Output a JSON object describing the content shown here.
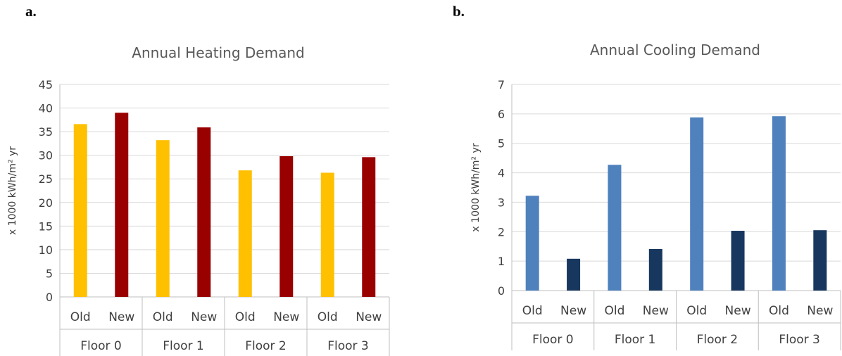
{
  "panels": {
    "a": "a.",
    "b": "b."
  },
  "chart_data": [
    {
      "type": "bar",
      "title": "Annual Heating Demand",
      "ylabel": "x 1000 kWh/m² yr",
      "xlabel": "",
      "ylim": [
        0,
        45
      ],
      "yticks": [
        0,
        5,
        10,
        15,
        20,
        25,
        30,
        35,
        40,
        45
      ],
      "groups": [
        "Floor 0",
        "Floor 1",
        "Floor 2",
        "Floor 3"
      ],
      "subcategories": [
        "Old",
        "New"
      ],
      "series": [
        {
          "values": [
            36.6,
            39.0,
            33.2,
            35.9,
            26.8,
            29.8,
            26.3,
            29.6
          ]
        }
      ],
      "bar_colors": [
        "#FFC000",
        "#990000",
        "#FFC000",
        "#990000",
        "#FFC000",
        "#990000",
        "#FFC000",
        "#990000"
      ],
      "grid": true
    },
    {
      "type": "bar",
      "title": "Annual Cooling Demand",
      "ylabel": "x 1000 kWh/m² yr",
      "xlabel": "",
      "ylim": [
        0,
        7
      ],
      "yticks": [
        0,
        1,
        2,
        3,
        4,
        5,
        6,
        7
      ],
      "groups": [
        "Floor 0",
        "Floor 1",
        "Floor 2",
        "Floor 3"
      ],
      "subcategories": [
        "Old",
        "New"
      ],
      "series": [
        {
          "values": [
            3.22,
            1.08,
            4.27,
            1.41,
            5.88,
            2.03,
            5.92,
            2.05
          ]
        }
      ],
      "bar_colors": [
        "#4F81BD",
        "#17375E",
        "#4F81BD",
        "#17375E",
        "#4F81BD",
        "#17375E",
        "#4F81BD",
        "#17375E"
      ],
      "grid": true
    }
  ]
}
